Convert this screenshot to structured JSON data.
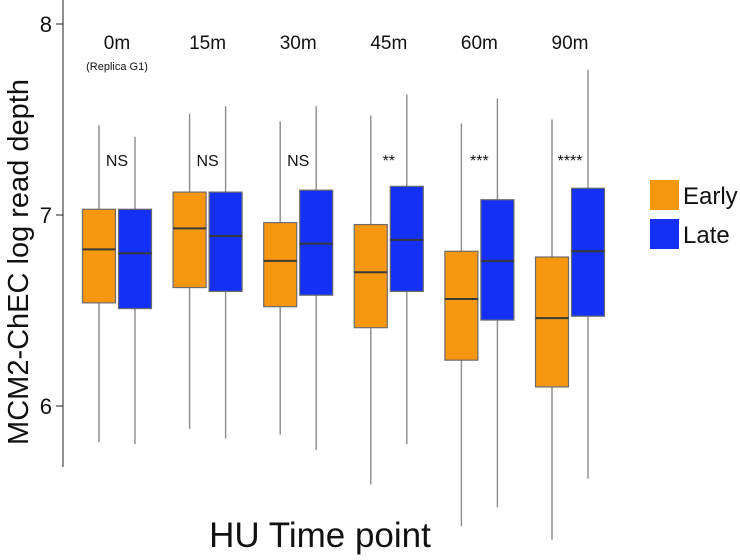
{
  "chart_data": {
    "type": "boxplot",
    "title": "",
    "xlabel": "HU Time point",
    "ylabel": "MCM2-ChEC log read depth",
    "ylim": [
      5.65,
      8.1
    ],
    "yticks": [
      6,
      7,
      8
    ],
    "grid": false,
    "legend_position": "right",
    "categories": [
      {
        "label": "0m",
        "sublabel": "(Replica G1)",
        "significance": "NS"
      },
      {
        "label": "15m",
        "sublabel": "",
        "significance": "NS"
      },
      {
        "label": "30m",
        "sublabel": "",
        "significance": "NS"
      },
      {
        "label": "45m",
        "sublabel": "",
        "significance": "**"
      },
      {
        "label": "60m",
        "sublabel": "",
        "significance": "***"
      },
      {
        "label": "90m",
        "sublabel": "",
        "significance": "****"
      }
    ],
    "series": [
      {
        "name": "Early",
        "color": "#F7960F",
        "boxes": [
          {
            "whisker_low": 5.81,
            "q1": 6.54,
            "median": 6.82,
            "q3": 7.03,
            "whisker_high": 7.47
          },
          {
            "whisker_low": 5.88,
            "q1": 6.62,
            "median": 6.93,
            "q3": 7.12,
            "whisker_high": 7.53
          },
          {
            "whisker_low": 5.85,
            "q1": 6.52,
            "median": 6.76,
            "q3": 6.96,
            "whisker_high": 7.49
          },
          {
            "whisker_low": 5.59,
            "q1": 6.41,
            "median": 6.7,
            "q3": 6.95,
            "whisker_high": 7.52
          },
          {
            "whisker_low": 5.37,
            "q1": 6.24,
            "median": 6.56,
            "q3": 6.81,
            "whisker_high": 7.48
          },
          {
            "whisker_low": 5.3,
            "q1": 6.1,
            "median": 6.46,
            "q3": 6.78,
            "whisker_high": 7.5
          }
        ]
      },
      {
        "name": "Late",
        "color": "#1430F5",
        "boxes": [
          {
            "whisker_low": 5.8,
            "q1": 6.51,
            "median": 6.8,
            "q3": 7.03,
            "whisker_high": 7.41
          },
          {
            "whisker_low": 5.83,
            "q1": 6.6,
            "median": 6.89,
            "q3": 7.12,
            "whisker_high": 7.57
          },
          {
            "whisker_low": 5.77,
            "q1": 6.58,
            "median": 6.85,
            "q3": 7.13,
            "whisker_high": 7.57
          },
          {
            "whisker_low": 5.8,
            "q1": 6.6,
            "median": 6.87,
            "q3": 7.15,
            "whisker_high": 7.63
          },
          {
            "whisker_low": 5.47,
            "q1": 6.45,
            "median": 6.76,
            "q3": 7.08,
            "whisker_high": 7.61
          },
          {
            "whisker_low": 5.62,
            "q1": 6.47,
            "median": 6.81,
            "q3": 7.14,
            "whisker_high": 7.76
          }
        ]
      }
    ]
  }
}
